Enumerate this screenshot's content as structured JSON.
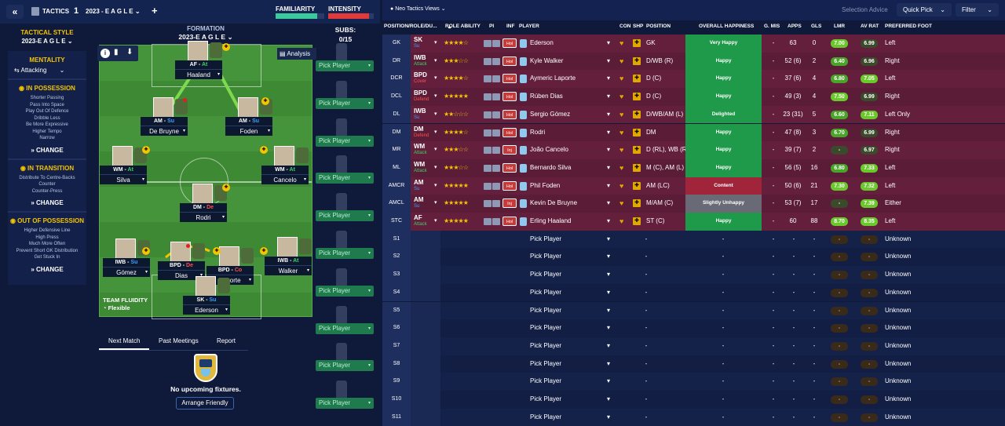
{
  "topbar": {
    "back_glyph": "«",
    "tactics_label": "TACTICS",
    "slot_number": "1",
    "tactic_name": "2023 - E A G L E",
    "add_glyph": "+",
    "familiarity_label": "FAMILIARITY",
    "intensity_label": "INTENSITY",
    "familiarity_value": 0.85,
    "intensity_value": 0.9
  },
  "rightbar": {
    "views_label": "Neo Tactics Views",
    "selection_advice": "Selection Advice",
    "quick_pick": "Quick Pick",
    "filter": "Filter"
  },
  "left": {
    "tactical_style_label": "TACTICAL STYLE",
    "tactical_style_value": "2023-E A G L E",
    "mentality_label": "MENTALITY",
    "mentality_value": "Attacking",
    "in_possession_label": "IN POSSESSION",
    "in_possession_items": [
      "Shorter Passing",
      "Pass Into Space",
      "Play Out Of Defence",
      "Dribble Less",
      "Be More Expressive",
      "Higher Tempo",
      "Narrow"
    ],
    "in_transition_label": "IN TRANSITION",
    "in_transition_items": [
      "Distribute To Centre-Backs",
      "Counter",
      "Counter-Press"
    ],
    "out_possession_label": "OUT OF POSSESSION",
    "out_possession_items": [
      "Higher Defensive Line",
      "High Press",
      "Much More Often",
      "Prevent Short GK Distribution",
      "Get Stuck In"
    ],
    "change_label": "CHANGE"
  },
  "formation": {
    "label": "FORMATION",
    "name": "2023-E A G L E",
    "subs_label": "SUBS:",
    "subs_count": "0/15",
    "analysis": "Analysis",
    "fluidity_label": "TEAM FLUIDITY",
    "fluidity_value": "Flexible"
  },
  "pitch_players": [
    {
      "role": "AF",
      "duty": "At",
      "duty_class": "role-at",
      "name": "Haaland"
    },
    {
      "role": "AM",
      "duty": "Su",
      "duty_class": "role-su",
      "name": "De Bruyne"
    },
    {
      "role": "AM",
      "duty": "Su",
      "duty_class": "role-su",
      "name": "Foden"
    },
    {
      "role": "WM",
      "duty": "At",
      "duty_class": "role-at",
      "name": "Silva"
    },
    {
      "role": "WM",
      "duty": "At",
      "duty_class": "role-at",
      "name": "Cancelo"
    },
    {
      "role": "DM",
      "duty": "De",
      "duty_class": "role-de",
      "name": "Rodri"
    },
    {
      "role": "IWB",
      "duty": "Su",
      "duty_class": "role-su",
      "name": "Gómez"
    },
    {
      "role": "BPD",
      "duty": "De",
      "duty_class": "role-de",
      "name": "Dias"
    },
    {
      "role": "BPD",
      "duty": "Co",
      "duty_class": "role-co",
      "name": "Laporte"
    },
    {
      "role": "IWB",
      "duty": "At",
      "duty_class": "role-at",
      "name": "Walker"
    },
    {
      "role": "SK",
      "duty": "Su",
      "duty_class": "role-su",
      "name": "Ederson"
    }
  ],
  "subs": {
    "pick_label": "Pick Player"
  },
  "bottom": {
    "tabs": [
      "Next Match",
      "Past Meetings",
      "Report"
    ],
    "no_fixtures": "No upcoming fixtures.",
    "arrange_friendly": "Arrange Friendly"
  },
  "table": {
    "headers": [
      "POSITION/ROLE/DU...",
      "ROLE ABILITY",
      "PI",
      "INF",
      "PLAYER",
      "CON",
      "SHP",
      "POSITION",
      "OVERALL HAPPINESS",
      "G. MIS",
      "APPS",
      "GLS",
      "LMR",
      "AV RAT",
      "PREFERRED FOOT"
    ],
    "rows": [
      {
        "pos": "GK",
        "role": "SK",
        "duty": "Su",
        "stars": "★★★★☆",
        "inf": "Hol",
        "name": "Ederson",
        "position": "GK",
        "happiness": "Very Happy",
        "gmis": "-",
        "apps": "63",
        "gls": "0",
        "lmr": "7.00",
        "avrat": "6.99",
        "foot": "Left"
      },
      {
        "pos": "DR",
        "role": "IWB",
        "duty": "Attack",
        "stars": "★★★☆☆",
        "inf": "Hol",
        "name": "Kyle Walker",
        "position": "D/WB (R)",
        "happiness": "Happy",
        "gmis": "-",
        "apps": "52 (6)",
        "gls": "2",
        "lmr": "6.40",
        "avrat": "6.96",
        "foot": "Right"
      },
      {
        "pos": "DCR",
        "role": "BPD",
        "duty": "Cover",
        "stars": "★★★★☆",
        "inf": "Hol",
        "name": "Aymeric Laporte",
        "position": "D (C)",
        "happiness": "Happy",
        "gmis": "-",
        "apps": "37 (6)",
        "gls": "4",
        "lmr": "6.80",
        "avrat": "7.05",
        "foot": "Left"
      },
      {
        "pos": "DCL",
        "role": "BPD",
        "duty": "Defend",
        "stars": "★★★★★",
        "inf": "Hol",
        "name": "Rúben Dias",
        "position": "D (C)",
        "happiness": "Happy",
        "gmis": "-",
        "apps": "49 (3)",
        "gls": "4",
        "lmr": "7.50",
        "avrat": "6.99",
        "foot": "Right"
      },
      {
        "pos": "DL",
        "role": "IWB",
        "duty": "Su",
        "stars": "★★☆☆☆",
        "inf": "Hol",
        "name": "Sergio Gómez",
        "position": "D/WB/AM (L)",
        "happiness": "Delighted",
        "gmis": "-",
        "apps": "23 (31)",
        "gls": "5",
        "lmr": "6.60",
        "avrat": "7.11",
        "foot": "Left Only"
      },
      {
        "pos": "DM",
        "role": "DM",
        "duty": "Defend",
        "stars": "★★★★☆",
        "inf": "Hol",
        "name": "Rodri",
        "position": "DM",
        "happiness": "Happy",
        "gmis": "-",
        "apps": "47 (8)",
        "gls": "3",
        "lmr": "6.70",
        "avrat": "6.99",
        "foot": "Right"
      },
      {
        "pos": "MR",
        "role": "WM",
        "duty": "Attack",
        "stars": "★★★☆☆",
        "inf": "Inj",
        "name": "João Cancelo",
        "position": "D (RL), WB (R)",
        "happiness": "Happy",
        "gmis": "-",
        "apps": "39 (7)",
        "gls": "2",
        "lmr": "-",
        "avrat": "6.97",
        "foot": "Right"
      },
      {
        "pos": "ML",
        "role": "WM",
        "duty": "Attack",
        "stars": "★★★☆☆",
        "inf": "Hol",
        "name": "Bernardo Silva",
        "position": "M (C), AM (L)",
        "happiness": "Happy",
        "gmis": "-",
        "apps": "56 (5)",
        "gls": "16",
        "lmr": "6.80",
        "avrat": "7.33",
        "foot": "Left"
      },
      {
        "pos": "AMCR",
        "role": "AM",
        "duty": "Su",
        "stars": "★★★★★",
        "inf": "Hol",
        "name": "Phil Foden",
        "position": "AM (LC)",
        "happiness": "Content",
        "gmis": "-",
        "apps": "50 (6)",
        "gls": "21",
        "lmr": "7.30",
        "avrat": "7.32",
        "foot": "Left"
      },
      {
        "pos": "AMCL",
        "role": "AM",
        "duty": "Su",
        "stars": "★★★★★",
        "inf": "Inj",
        "name": "Kevin De Bruyne",
        "position": "M/AM (C)",
        "happiness": "Slightly Unhappy",
        "gmis": "-",
        "apps": "53 (7)",
        "gls": "17",
        "lmr": "-",
        "avrat": "7.39",
        "foot": "Either"
      },
      {
        "pos": "STC",
        "role": "AF",
        "duty": "Attack",
        "stars": "★★★★★",
        "inf": "Hol",
        "name": "Erling Haaland",
        "position": "ST (C)",
        "happiness": "Happy",
        "gmis": "-",
        "apps": "60",
        "gls": "88",
        "lmr": "8.70",
        "avrat": "8.35",
        "foot": "Left"
      }
    ],
    "sub_rows": [
      "S1",
      "S2",
      "S3",
      "S4",
      "S5",
      "S6",
      "S7",
      "S8",
      "S9",
      "S10",
      "S11"
    ],
    "sub_pick": "Pick Player",
    "sub_dash": "-",
    "sub_foot": "Unknown"
  }
}
